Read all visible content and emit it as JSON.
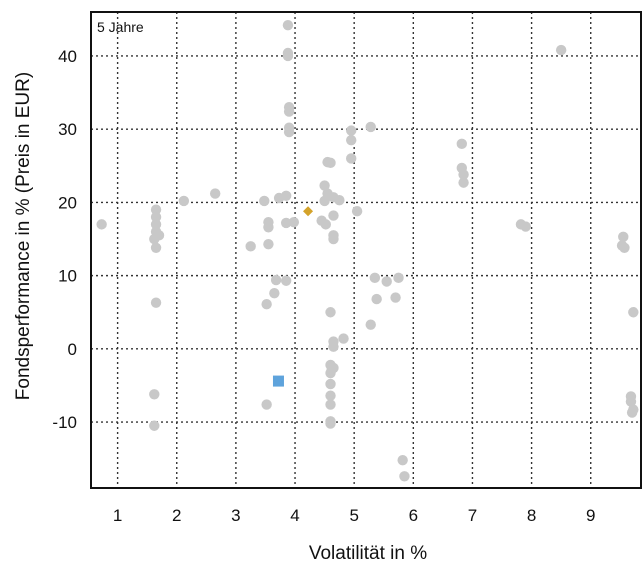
{
  "chart_data": {
    "type": "scatter",
    "title": "",
    "period_label": "5 Jahre",
    "xlabel": "Volatilität in %",
    "ylabel": "Fondsperformance in % (Preis in EUR)",
    "xlim": [
      0.55,
      9.85
    ],
    "ylim": [
      -19,
      46
    ],
    "grid": true,
    "x_ticks": [
      1,
      2,
      3,
      4,
      5,
      6,
      7,
      8,
      9
    ],
    "y_ticks": [
      -10,
      0,
      10,
      20,
      30,
      40
    ],
    "x_tick_labels": [
      "1",
      "2",
      "3",
      "4",
      "5",
      "6",
      "7",
      "8",
      "9"
    ],
    "y_tick_labels": [
      "-10",
      "0",
      "10",
      "20",
      "30",
      "40"
    ],
    "colors": {
      "peers": "#c8c8c8",
      "fund": "#5ea3dc",
      "benchmark": "#d4a32a"
    },
    "series": [
      {
        "marker": "circle",
        "color": "#c8c8c8",
        "points": [
          [
            0.73,
            17.0
          ],
          [
            1.65,
            19.0
          ],
          [
            1.65,
            18.0
          ],
          [
            1.65,
            17.0
          ],
          [
            1.65,
            16.0
          ],
          [
            1.62,
            15.0
          ],
          [
            1.7,
            15.5
          ],
          [
            1.65,
            13.8
          ],
          [
            1.65,
            6.3
          ],
          [
            1.62,
            -6.2
          ],
          [
            1.62,
            -10.5
          ],
          [
            2.12,
            20.2
          ],
          [
            2.65,
            21.2
          ],
          [
            3.25,
            14.0
          ],
          [
            3.48,
            20.2
          ],
          [
            3.55,
            17.3
          ],
          [
            3.55,
            16.6
          ],
          [
            3.55,
            14.3
          ],
          [
            3.52,
            6.1
          ],
          [
            3.52,
            -7.6
          ],
          [
            3.68,
            9.4
          ],
          [
            3.65,
            7.6
          ],
          [
            3.73,
            20.6
          ],
          [
            3.85,
            20.9
          ],
          [
            3.85,
            17.2
          ],
          [
            3.98,
            17.3
          ],
          [
            3.85,
            9.3
          ],
          [
            3.88,
            44.2
          ],
          [
            3.88,
            40.4
          ],
          [
            3.88,
            40.0
          ],
          [
            3.9,
            33.0
          ],
          [
            3.9,
            32.4
          ],
          [
            3.9,
            30.2
          ],
          [
            3.9,
            29.6
          ],
          [
            4.45,
            17.5
          ],
          [
            4.52,
            17.0
          ],
          [
            4.5,
            22.3
          ],
          [
            4.55,
            25.5
          ],
          [
            4.6,
            25.4
          ],
          [
            4.55,
            21.2
          ],
          [
            4.5,
            20.2
          ],
          [
            4.65,
            20.7
          ],
          [
            4.75,
            20.3
          ],
          [
            4.65,
            18.2
          ],
          [
            4.65,
            15.5
          ],
          [
            4.65,
            15.0
          ],
          [
            4.95,
            29.8
          ],
          [
            4.95,
            28.5
          ],
          [
            4.95,
            26.0
          ],
          [
            5.05,
            18.8
          ],
          [
            5.28,
            30.3
          ],
          [
            4.6,
            5.0
          ],
          [
            4.65,
            1.0
          ],
          [
            4.65,
            0.3
          ],
          [
            4.82,
            1.4
          ],
          [
            5.28,
            3.3
          ],
          [
            5.35,
            9.7
          ],
          [
            5.38,
            6.8
          ],
          [
            5.55,
            9.2
          ],
          [
            5.7,
            7.0
          ],
          [
            5.75,
            9.7
          ],
          [
            4.6,
            -2.2
          ],
          [
            4.62,
            -2.8
          ],
          [
            4.65,
            -2.6
          ],
          [
            4.6,
            -3.3
          ],
          [
            4.6,
            -4.8
          ],
          [
            4.6,
            -6.4
          ],
          [
            4.6,
            -7.6
          ],
          [
            4.6,
            -9.9
          ],
          [
            4.6,
            -10.2
          ],
          [
            5.82,
            -15.2
          ],
          [
            5.85,
            -17.4
          ],
          [
            6.82,
            28.0
          ],
          [
            6.82,
            24.7
          ],
          [
            6.85,
            23.8
          ],
          [
            6.85,
            22.7
          ],
          [
            7.82,
            17.0
          ],
          [
            7.9,
            16.7
          ],
          [
            8.5,
            40.8
          ],
          [
            9.55,
            15.3
          ],
          [
            9.53,
            14.1
          ],
          [
            9.57,
            13.8
          ],
          [
            9.72,
            5.0
          ],
          [
            9.68,
            -6.5
          ],
          [
            9.68,
            -7.2
          ],
          [
            9.72,
            -8.3
          ],
          [
            9.7,
            -8.7
          ]
        ]
      },
      {
        "marker": "square",
        "color": "#5ea3dc",
        "points": [
          [
            3.72,
            -4.4
          ]
        ]
      },
      {
        "marker": "diamond",
        "color": "#d4a32a",
        "points": [
          [
            4.22,
            18.8
          ]
        ]
      }
    ]
  }
}
